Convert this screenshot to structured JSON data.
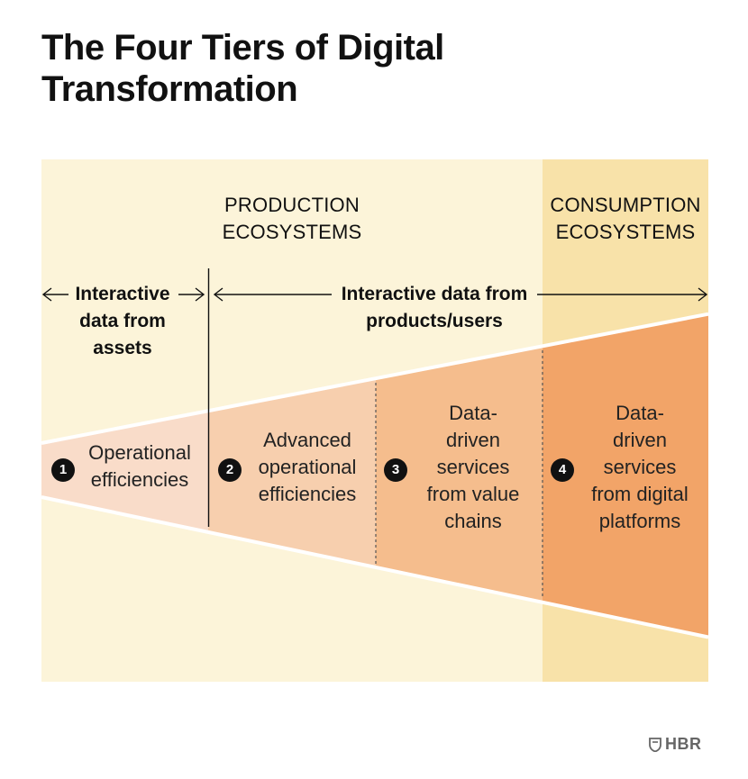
{
  "title": "The Four Tiers of Digital Transformation",
  "ecosystems": {
    "production": "PRODUCTION\nECOSYSTEMS",
    "consumption": "CONSUMPTION\nECOSYSTEMS"
  },
  "data_sources": {
    "assets": "Interactive\ndata from\nassets",
    "products": "Interactive data from\nproducts/users"
  },
  "tiers": [
    {
      "number": "1",
      "label": "Operational\nefficiencies"
    },
    {
      "number": "2",
      "label": "Advanced\noperational\nefficiencies"
    },
    {
      "number": "3",
      "label": "Data-\ndriven\nservices\nfrom value\nchains"
    },
    {
      "number": "4",
      "label": "Data-\ndriven\nservices\nfrom digital\nplatforms"
    }
  ],
  "colors": {
    "background_band": "#fcf4d9",
    "consumption_band": "#f8e2a9",
    "tier1": "#f9dcc9",
    "tier2": "#f7cfae",
    "tier3": "#f5bd8d",
    "tier4": "#f2a468"
  },
  "source": "HBR"
}
